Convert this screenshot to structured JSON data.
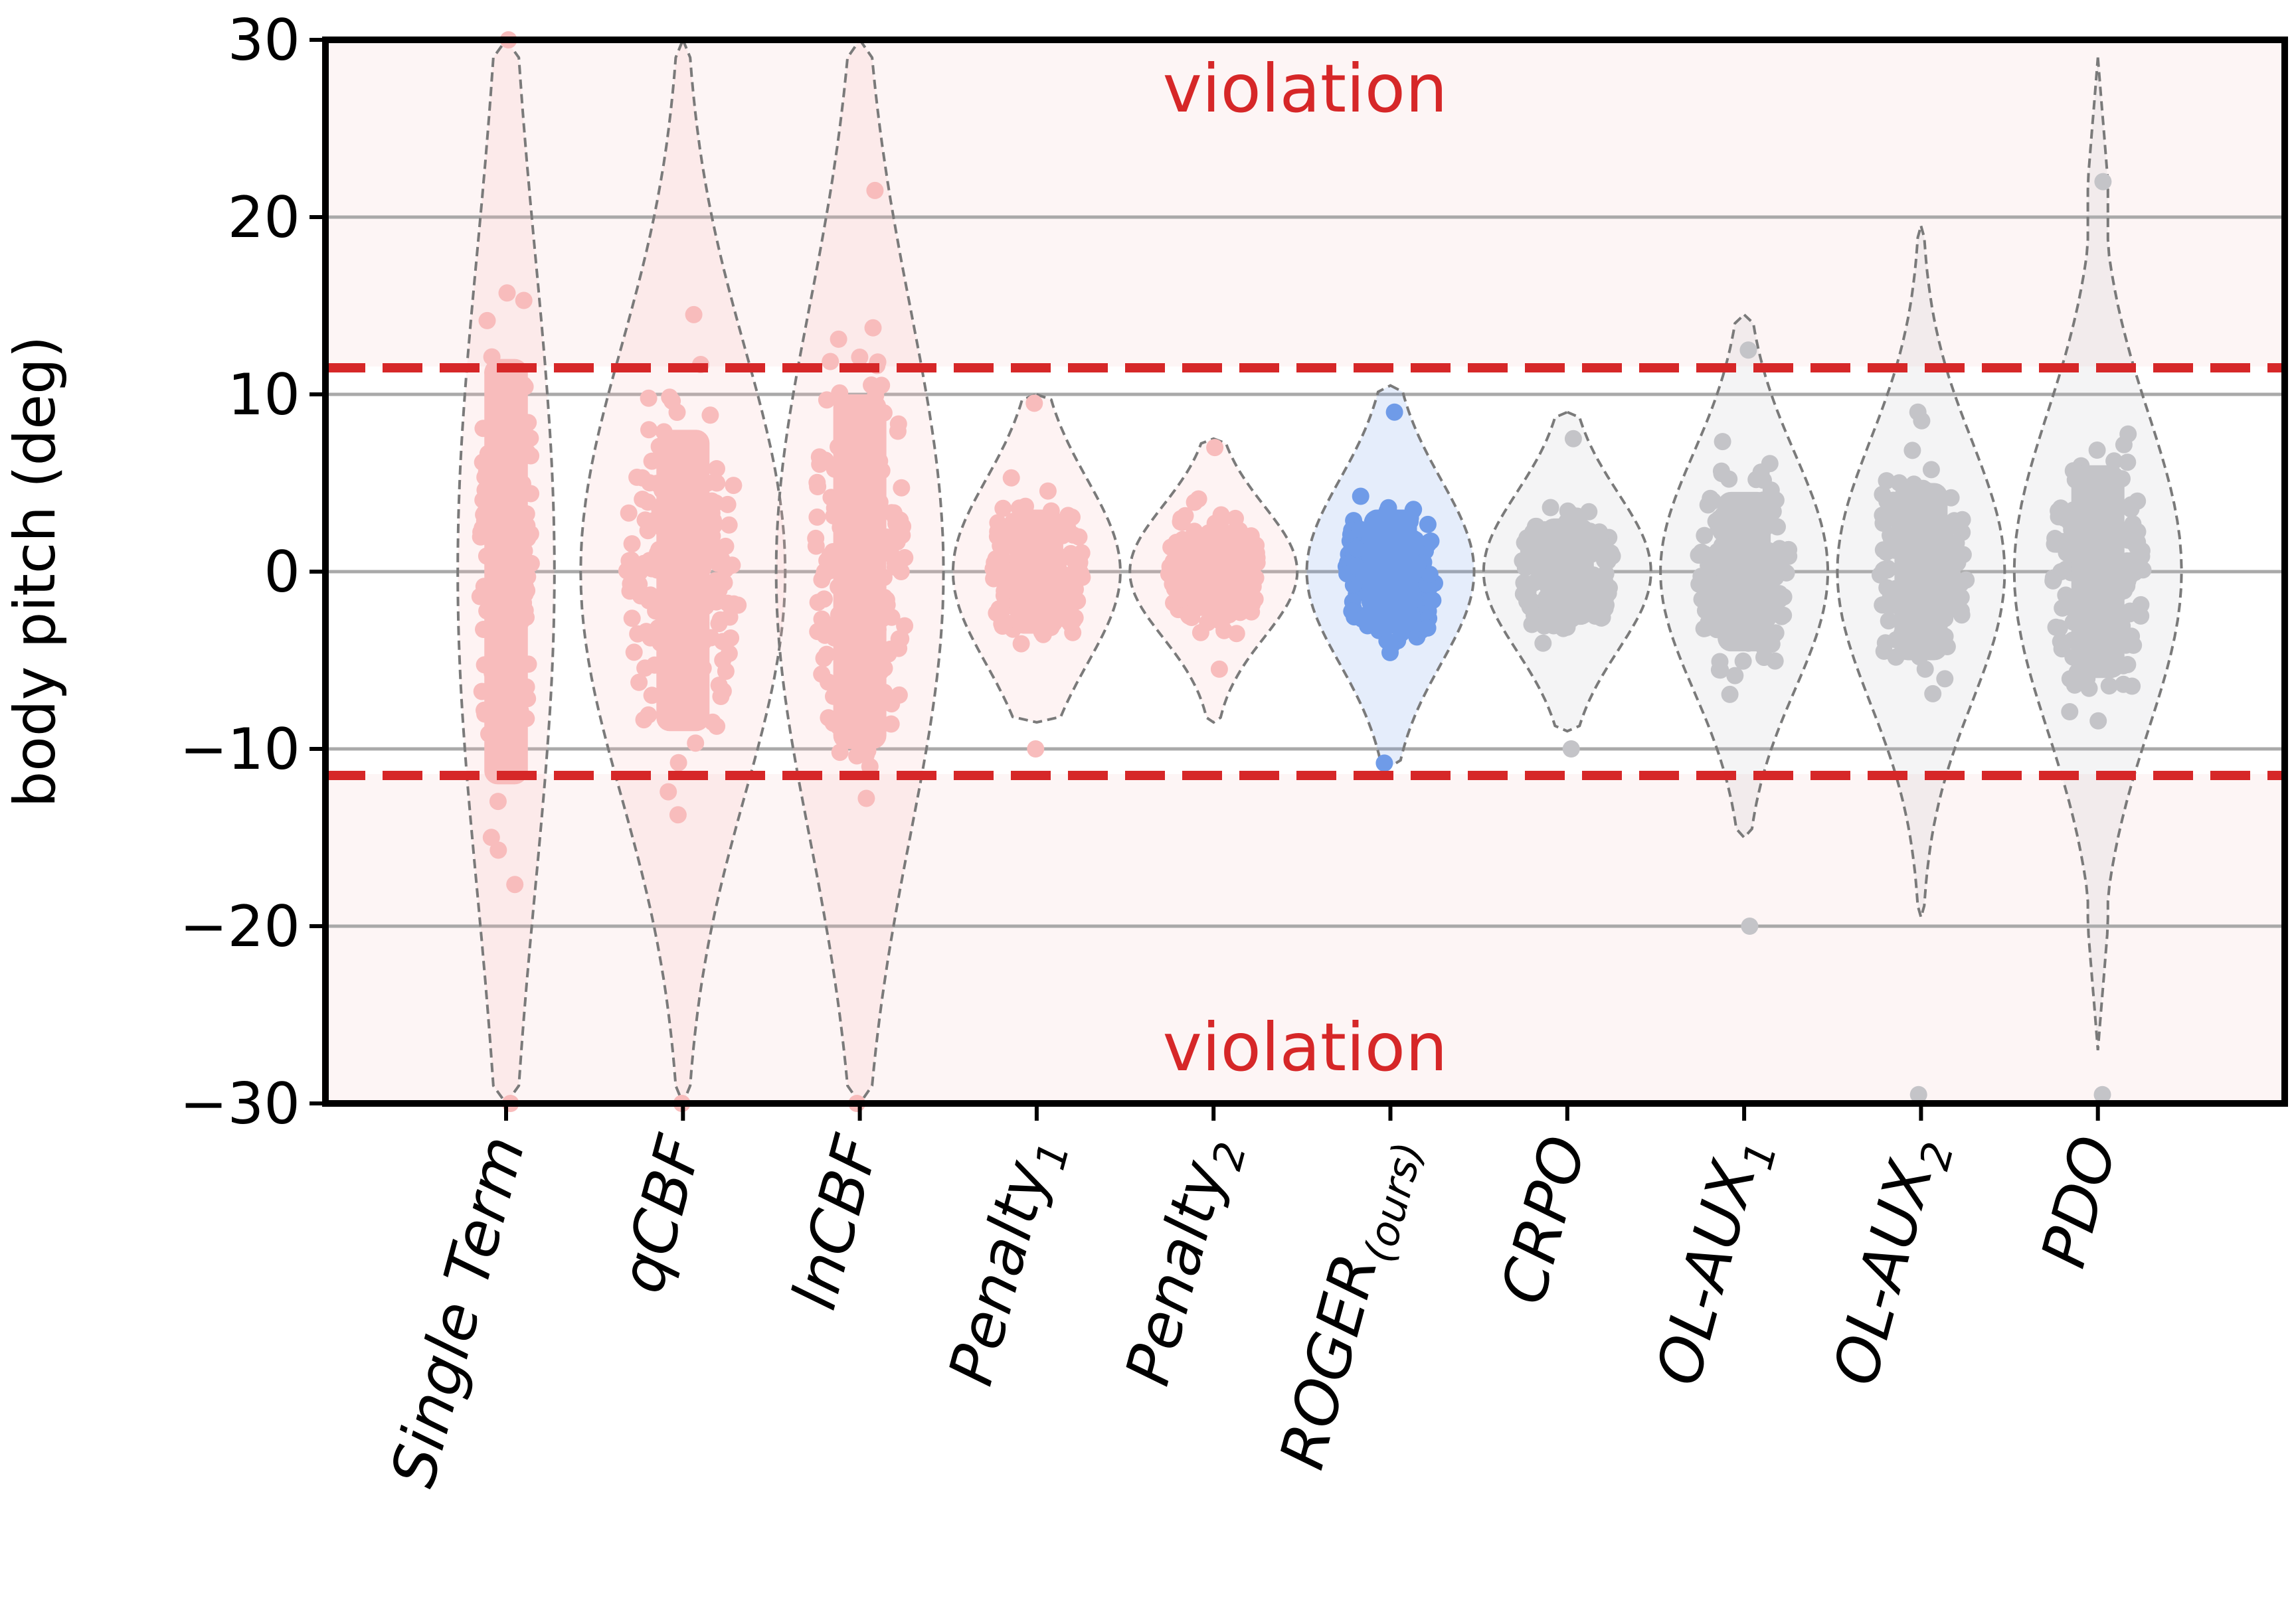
{
  "chart_data": {
    "type": "violin",
    "title": "",
    "xlabel": "",
    "ylabel": "body pitch (deg)",
    "ylim": [
      -30,
      30
    ],
    "yticks": [
      -30,
      -20,
      -10,
      0,
      10,
      20,
      30
    ],
    "ytick_labels": [
      "−30",
      "−20",
      "−10",
      "0",
      "10",
      "20",
      "30"
    ],
    "grid": "horizontal",
    "threshold": 11.5,
    "zone_labels": {
      "upper": "violation",
      "lower": "violation"
    },
    "colors": {
      "baseline": "#f8bcbc",
      "ours": "#6f9be8",
      "others": "#c4c4c8",
      "threshold": "#d62728",
      "violin_edge": "#7a7a7a",
      "grid": "#a9a9a9",
      "violation_bg": "#fdf5f5"
    },
    "categories": [
      {
        "name": "Single Term",
        "label": "Single Term",
        "sub": "",
        "group": "baseline",
        "min": -30,
        "max": 30,
        "q1": -12,
        "median": 0,
        "q3": 12,
        "violin_min": -30,
        "violin_max": 30,
        "violin_halfwidth": 2.6
      },
      {
        "name": "qCBF",
        "label": "qCBF",
        "sub": "",
        "group": "baseline",
        "min": -30,
        "max": 14.5,
        "q1": -9,
        "median": 0,
        "q3": 8,
        "violin_min": -30,
        "violin_max": 30,
        "violin_halfwidth": 5.5
      },
      {
        "name": "lnCBF",
        "label": "lnCBF",
        "sub": "",
        "group": "baseline",
        "min": -30,
        "max": 21.5,
        "q1": -10,
        "median": 0,
        "q3": 10,
        "violin_min": -30,
        "violin_max": 30,
        "violin_halfwidth": 4.5
      },
      {
        "name": "Penalty1",
        "label": "Penalty",
        "sub": "1",
        "group": "baseline",
        "min": -10,
        "max": 9.5,
        "q1": -3.5,
        "median": 0,
        "q3": 3.5,
        "violin_min": -8.5,
        "violin_max": 10,
        "violin_halfwidth": 4.5
      },
      {
        "name": "Penalty2",
        "label": "Penalty",
        "sub": "2",
        "group": "baseline",
        "min": -5.5,
        "max": 7,
        "q1": -2.5,
        "median": 0,
        "q3": 2.5,
        "violin_min": -8.5,
        "violin_max": 7.5,
        "violin_halfwidth": 4.5
      },
      {
        "name": "ROGER(ours)",
        "label": "ROGER",
        "sub": "(ours)",
        "group": "ours",
        "min": -10.8,
        "max": 9,
        "q1": -3.5,
        "median": 0,
        "q3": 3.5,
        "violin_min": -11,
        "violin_max": 10.5,
        "violin_halfwidth": 4.5
      },
      {
        "name": "CRPO",
        "label": "CRPO",
        "sub": "",
        "group": "others",
        "min": -10,
        "max": 7.5,
        "q1": -3,
        "median": 0,
        "q3": 3,
        "violin_min": -9,
        "violin_max": 9,
        "violin_halfwidth": 4.5
      },
      {
        "name": "OL-AUX1",
        "label": "OL-AUX",
        "sub": "1",
        "group": "others",
        "min": -20,
        "max": 12.5,
        "q1": -4.5,
        "median": 0,
        "q3": 4.5,
        "violin_min": -15,
        "violin_max": 14.5,
        "violin_halfwidth": 4.5
      },
      {
        "name": "OL-AUX2",
        "label": "OL-AUX",
        "sub": "2",
        "group": "others",
        "min": -29.5,
        "max": 9,
        "q1": -5,
        "median": 0,
        "q3": 5,
        "violin_min": -19.5,
        "violin_max": 19.5,
        "violin_halfwidth": 4.5
      },
      {
        "name": "PDO",
        "label": "PDO",
        "sub": "",
        "group": "others",
        "min": -29.5,
        "max": 22,
        "q1": -6,
        "median": 0,
        "q3": 6,
        "violin_min": -27,
        "violin_max": 29,
        "violin_halfwidth": 4.5
      }
    ]
  }
}
